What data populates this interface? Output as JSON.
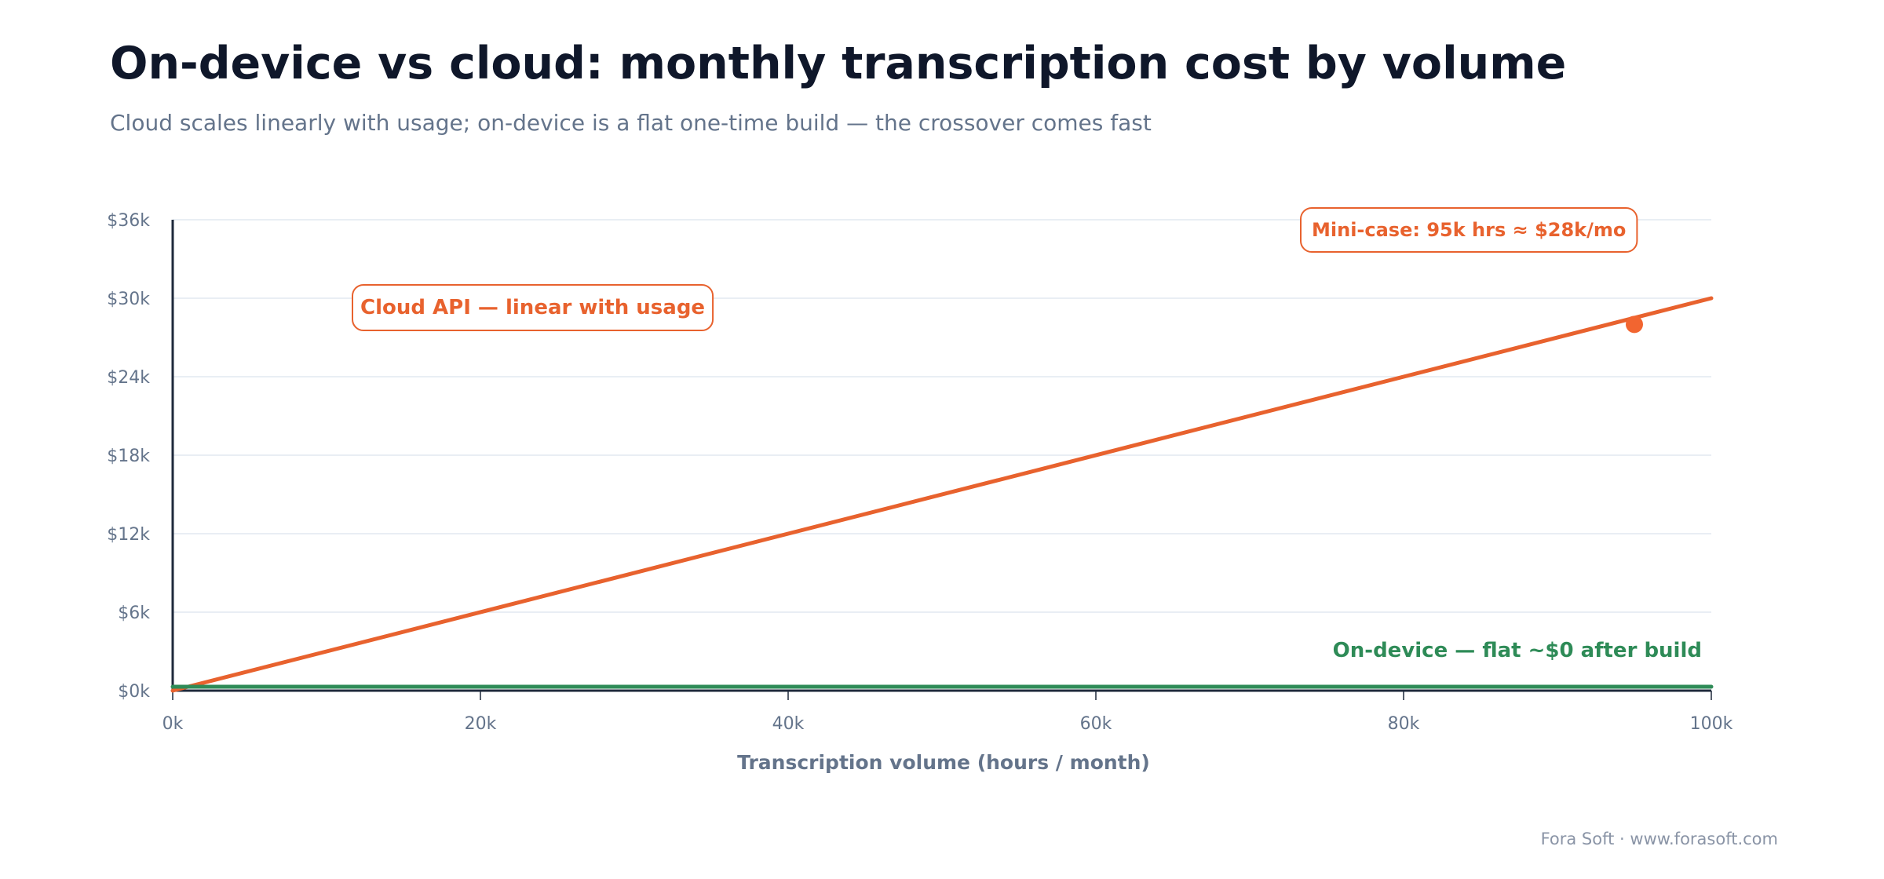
{
  "header": {
    "title": "On-device vs cloud: monthly transcription cost by volume",
    "subtitle": "Cloud scales linearly with usage; on-device is a flat one-time build — the crossover comes fast"
  },
  "chart_data": {
    "type": "line",
    "xlabel": "Transcription volume (hours / month)",
    "ylabel": "",
    "xlim": [
      0,
      100000
    ],
    "ylim": [
      0,
      36000
    ],
    "x_ticks": [
      {
        "value": 0,
        "label": "0k"
      },
      {
        "value": 20000,
        "label": "20k"
      },
      {
        "value": 40000,
        "label": "40k"
      },
      {
        "value": 60000,
        "label": "60k"
      },
      {
        "value": 80000,
        "label": "80k"
      },
      {
        "value": 100000,
        "label": "100k"
      }
    ],
    "y_ticks": [
      {
        "value": 0,
        "label": "$0k"
      },
      {
        "value": 6000,
        "label": "$6k"
      },
      {
        "value": 12000,
        "label": "$12k"
      },
      {
        "value": 18000,
        "label": "$18k"
      },
      {
        "value": 24000,
        "label": "$24k"
      },
      {
        "value": 30000,
        "label": "$30k"
      },
      {
        "value": 36000,
        "label": "$36k"
      }
    ],
    "grid": "horizontal",
    "series": [
      {
        "key": "cloud",
        "color": "#e8622e",
        "x": [
          0,
          100000
        ],
        "y": [
          0,
          30000
        ]
      },
      {
        "key": "on_device",
        "color": "#2e8b57",
        "x": [
          0,
          100000
        ],
        "y": [
          300,
          300
        ]
      }
    ],
    "highlight_point": {
      "x": 95000,
      "y": 28000,
      "color": "#f26530"
    },
    "annotations": [
      {
        "key": "cloud_label",
        "text": "Cloud API — linear with usage",
        "color": "#e8622e",
        "boxed": true
      },
      {
        "key": "mini_case",
        "text": "Mini-case: 95k hrs ≈ $28k/mo",
        "color": "#e8622e",
        "boxed": true
      },
      {
        "key": "on_device_label",
        "text": "On-device — flat ~$0 after build",
        "color": "#2e8b57",
        "boxed": false
      }
    ]
  },
  "footer": {
    "credit": "Fora Soft · www.forasoft.com"
  },
  "colors": {
    "axis": "#1e293b",
    "grid": "#e2e8f0",
    "tick_label": "#64748b"
  }
}
